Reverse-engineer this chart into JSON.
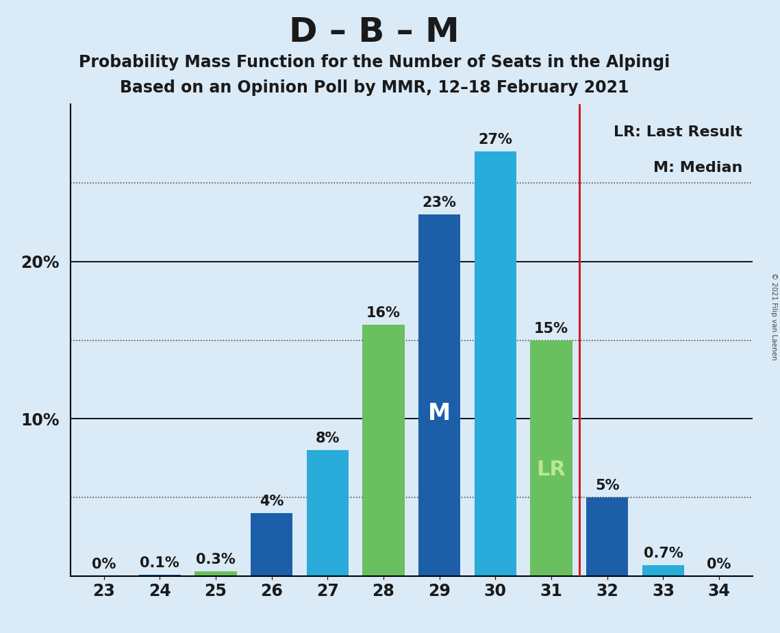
{
  "title": "D – B – M",
  "subtitle1": "Probability Mass Function for the Number of Seats in the Alpingi",
  "subtitle2": "Based on an Opinion Poll by MMR, 12–18 February 2021",
  "copyright": "© 2021 Filip van Laenen",
  "seats": [
    23,
    24,
    25,
    26,
    27,
    28,
    29,
    30,
    31,
    32,
    33,
    34
  ],
  "pmf_values": [
    0.0,
    0.1,
    0.3,
    4.0,
    8.0,
    16.0,
    23.0,
    27.0,
    15.0,
    5.0,
    0.7,
    0.0
  ],
  "bar_colors": [
    "#1c5fa8",
    "#1c5fa8",
    "#6abf5e",
    "#1c5fa8",
    "#29acd9",
    "#6abf5e",
    "#1c5fa8",
    "#29acd9",
    "#6abf5e",
    "#1c5fa8",
    "#29acd9",
    "#1c5fa8"
  ],
  "median_seat": 29,
  "lr_seat": 31,
  "lr_line_seat": 31.5,
  "pmf_color_dark": "#1c5fa8",
  "pmf_color_cyan": "#29acd9",
  "lr_color": "#6abf5e",
  "lr_line_color": "#cc2222",
  "background_color": "#daeaf7",
  "bar_labels": [
    "0%",
    "0.1%",
    "0.3%",
    "4%",
    "8%",
    "16%",
    "23%",
    "27%",
    "15%",
    "5%",
    "0.7%",
    "0%"
  ],
  "label_colors": [
    "#1a1a1a",
    "#1a1a1a",
    "#1a1a1a",
    "#1a1a1a",
    "#1a1a1a",
    "#1a1a1a",
    "#1a1a1a",
    "#1a1a1a",
    "#1a1a1a",
    "#1a1a1a",
    "#1a1a1a",
    "#1a1a1a"
  ],
  "median_label": "M",
  "lr_label": "LR",
  "median_label_color": "white",
  "lr_label_color": "#b8e890",
  "ylim": [
    0,
    30
  ],
  "solid_yticks": [
    10,
    20
  ],
  "dotted_yticks": [
    5,
    15,
    25
  ],
  "ytick_labels": [
    "10%",
    "20%"
  ],
  "legend_text1": "LR: Last Result",
  "legend_text2": "M: Median",
  "bar_width": 0.75,
  "title_fontsize": 36,
  "subtitle_fontsize": 17,
  "label_fontsize": 15,
  "tick_fontsize": 17,
  "legend_fontsize": 16
}
